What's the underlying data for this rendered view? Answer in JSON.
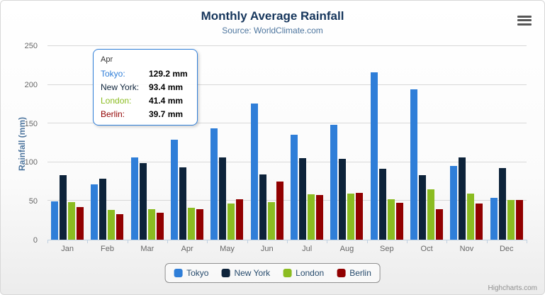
{
  "chart": {
    "title": "Monthly Average Rainfall",
    "subtitle": "Source: WorldClimate.com",
    "ylabel": "Rainfall (mm)",
    "credits": "Highcharts.com"
  },
  "chart_data": {
    "type": "bar",
    "title": "Monthly Average Rainfall",
    "subtitle": "Source: WorldClimate.com",
    "xlabel": "",
    "ylabel": "Rainfall (mm)",
    "ylim": [
      0,
      250
    ],
    "yticks": [
      0,
      50,
      100,
      150,
      200,
      250
    ],
    "grid": true,
    "legend_position": "bottom",
    "categories": [
      "Jan",
      "Feb",
      "Mar",
      "Apr",
      "May",
      "Jun",
      "Jul",
      "Aug",
      "Sep",
      "Oct",
      "Nov",
      "Dec"
    ],
    "series": [
      {
        "name": "Tokyo",
        "color": "#2f7ed8",
        "values": [
          49.9,
          71.5,
          106.4,
          129.2,
          144.0,
          176.0,
          135.6,
          148.5,
          216.4,
          194.1,
          95.6,
          54.4
        ]
      },
      {
        "name": "New York",
        "color": "#0d233a",
        "values": [
          83.6,
          78.8,
          98.5,
          93.4,
          106.0,
          84.5,
          105.0,
          104.3,
          91.2,
          83.5,
          106.6,
          92.3
        ]
      },
      {
        "name": "London",
        "color": "#8bbc21",
        "values": [
          48.9,
          38.8,
          39.3,
          41.4,
          47.0,
          48.3,
          59.0,
          59.6,
          52.4,
          65.2,
          59.3,
          51.2
        ]
      },
      {
        "name": "Berlin",
        "color": "#910000",
        "values": [
          42.4,
          33.2,
          34.5,
          39.7,
          52.6,
          75.5,
          57.4,
          60.4,
          47.6,
          39.1,
          46.8,
          51.1
        ]
      }
    ]
  },
  "tooltip": {
    "header": "Apr",
    "border_color": "#2f7ed8",
    "rows": [
      {
        "name": "Tokyo:",
        "value": "129.2 mm",
        "color": "#2f7ed8"
      },
      {
        "name": "New York:",
        "value": "93.4 mm",
        "color": "#0d233a"
      },
      {
        "name": "London:",
        "value": "41.4 mm",
        "color": "#8bbc21"
      },
      {
        "name": "Berlin:",
        "value": "39.7 mm",
        "color": "#910000"
      }
    ]
  },
  "legend": {
    "items": [
      {
        "label": "Tokyo",
        "color": "#2f7ed8"
      },
      {
        "label": "New York",
        "color": "#0d233a"
      },
      {
        "label": "London",
        "color": "#8bbc21"
      },
      {
        "label": "Berlin",
        "color": "#910000"
      }
    ]
  }
}
